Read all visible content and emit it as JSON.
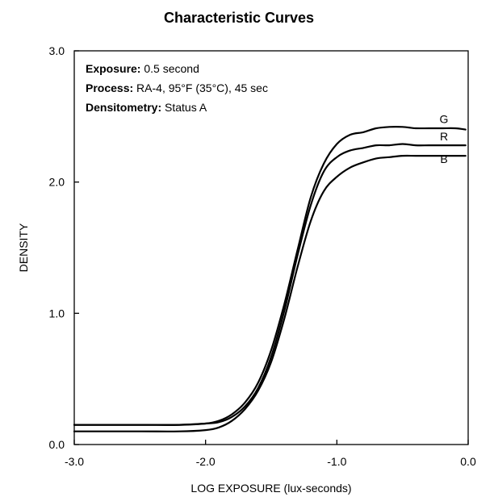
{
  "chart_data": {
    "type": "line",
    "title": "Characteristic Curves",
    "xlabel": "LOG EXPOSURE (lux-seconds)",
    "ylabel": "DENSITY",
    "xlim": [
      -3.0,
      0.0
    ],
    "ylim": [
      0.0,
      3.0
    ],
    "xticks": [
      -3.0,
      -2.0,
      -1.0,
      0.0
    ],
    "xtick_labels": [
      "-3.0",
      "-2.0",
      "-1.0",
      "0.0"
    ],
    "yticks": [
      0.0,
      1.0,
      2.0,
      3.0
    ],
    "ytick_labels": [
      "0.0",
      "1.0",
      "2.0",
      "3.0"
    ],
    "grid": false,
    "legend": "curve-end labels",
    "annotations": [
      {
        "key": "Exposure:",
        "value": " 0.5 second"
      },
      {
        "key": "Process:",
        "value": " RA-4, 95°F (35°C), 45 sec"
      },
      {
        "key": "Densitometry:",
        "value": " Status A"
      }
    ],
    "series": [
      {
        "name": "G",
        "x": [
          -3.0,
          -2.5,
          -2.2,
          -2.0,
          -1.9,
          -1.8,
          -1.7,
          -1.6,
          -1.5,
          -1.4,
          -1.3,
          -1.2,
          -1.1,
          -1.0,
          -0.9,
          -0.8,
          -0.7,
          -0.6,
          -0.5,
          -0.4,
          -0.3,
          -0.2,
          -0.1,
          -0.02
        ],
        "y": [
          0.15,
          0.15,
          0.15,
          0.16,
          0.18,
          0.23,
          0.32,
          0.47,
          0.72,
          1.07,
          1.48,
          1.88,
          2.14,
          2.29,
          2.36,
          2.38,
          2.41,
          2.42,
          2.42,
          2.41,
          2.41,
          2.41,
          2.41,
          2.4
        ]
      },
      {
        "name": "R",
        "x": [
          -3.0,
          -2.5,
          -2.2,
          -2.0,
          -1.9,
          -1.8,
          -1.7,
          -1.6,
          -1.5,
          -1.4,
          -1.3,
          -1.2,
          -1.1,
          -1.0,
          -0.9,
          -0.8,
          -0.7,
          -0.6,
          -0.5,
          -0.4,
          -0.3,
          -0.2,
          -0.1,
          -0.02
        ],
        "y": [
          0.15,
          0.15,
          0.15,
          0.16,
          0.17,
          0.21,
          0.29,
          0.43,
          0.67,
          1.02,
          1.44,
          1.82,
          2.08,
          2.19,
          2.24,
          2.26,
          2.28,
          2.28,
          2.29,
          2.28,
          2.28,
          2.28,
          2.28,
          2.28
        ]
      },
      {
        "name": "B",
        "x": [
          -3.0,
          -2.5,
          -2.2,
          -2.0,
          -1.9,
          -1.8,
          -1.7,
          -1.6,
          -1.5,
          -1.4,
          -1.3,
          -1.2,
          -1.1,
          -1.0,
          -0.9,
          -0.8,
          -0.7,
          -0.6,
          -0.5,
          -0.4,
          -0.3,
          -0.2,
          -0.1,
          -0.02
        ],
        "y": [
          0.1,
          0.1,
          0.1,
          0.11,
          0.13,
          0.18,
          0.27,
          0.41,
          0.63,
          0.96,
          1.35,
          1.7,
          1.93,
          2.04,
          2.11,
          2.15,
          2.18,
          2.19,
          2.2,
          2.2,
          2.2,
          2.2,
          2.2,
          2.2
        ]
      }
    ]
  }
}
